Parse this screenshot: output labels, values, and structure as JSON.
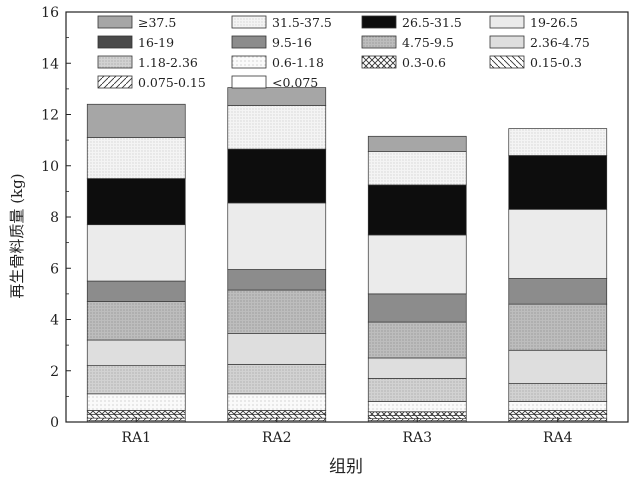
{
  "chart_data": {
    "type": "bar",
    "stacked": true,
    "xlabel": "组别",
    "ylabel": "再生骨料质量 (kg)",
    "ylim": [
      0,
      16
    ],
    "yticks": [
      0,
      2,
      4,
      6,
      8,
      10,
      12,
      14,
      16
    ],
    "categories": [
      "RA1",
      "RA2",
      "RA3",
      "RA4"
    ],
    "legend_position": "top",
    "series": [
      {
        "name": "<0.075",
        "style": "white",
        "values": [
          0.05,
          0.05,
          0.05,
          0.05
        ]
      },
      {
        "name": "0.075-0.15",
        "style": "diag-fwd",
        "values": [
          0.1,
          0.1,
          0.08,
          0.1
        ]
      },
      {
        "name": "0.15-0.3",
        "style": "diag-back",
        "values": [
          0.15,
          0.15,
          0.12,
          0.15
        ]
      },
      {
        "name": "0.3-0.6",
        "style": "crosshatch",
        "values": [
          0.15,
          0.15,
          0.15,
          0.15
        ]
      },
      {
        "name": "0.6-1.18",
        "style": "dots-sparse",
        "values": [
          0.65,
          0.65,
          0.4,
          0.35
        ]
      },
      {
        "name": "1.18-2.36",
        "style": "gray-light-dots",
        "values": [
          1.1,
          1.15,
          0.9,
          0.7
        ]
      },
      {
        "name": "2.36-4.75",
        "style": "light-gray",
        "values": [
          1.0,
          1.2,
          0.8,
          1.3
        ]
      },
      {
        "name": "4.75-9.5",
        "style": "gray-dots",
        "values": [
          1.5,
          1.7,
          1.4,
          1.8
        ]
      },
      {
        "name": "9.5-16",
        "style": "mid-gray",
        "values": [
          0.8,
          0.8,
          1.1,
          1.0
        ]
      },
      {
        "name": "16-19",
        "style": "dark-gray",
        "values": [
          0.0,
          0.0,
          0.0,
          0.0
        ]
      },
      {
        "name": "19-26.5",
        "style": "very-light",
        "values": [
          2.2,
          2.6,
          2.3,
          2.7
        ]
      },
      {
        "name": "26.5-31.5",
        "style": "black",
        "values": [
          1.8,
          2.1,
          1.95,
          2.1
        ]
      },
      {
        "name": "31.5-37.5",
        "style": "white-dots",
        "values": [
          1.6,
          1.7,
          1.3,
          1.05
        ]
      },
      {
        "name": "≥37.5",
        "style": "gray",
        "values": [
          1.3,
          0.7,
          0.6,
          0.0
        ]
      }
    ],
    "legend_order": [
      "≥37.5",
      "31.5-37.5",
      "26.5-31.5",
      "19-26.5",
      "16-19",
      "9.5-16",
      "4.75-9.5",
      "2.36-4.75",
      "1.18-2.36",
      "0.6-1.18",
      "0.3-0.6",
      "0.15-0.3",
      "0.075-0.15",
      "<0.075"
    ]
  }
}
